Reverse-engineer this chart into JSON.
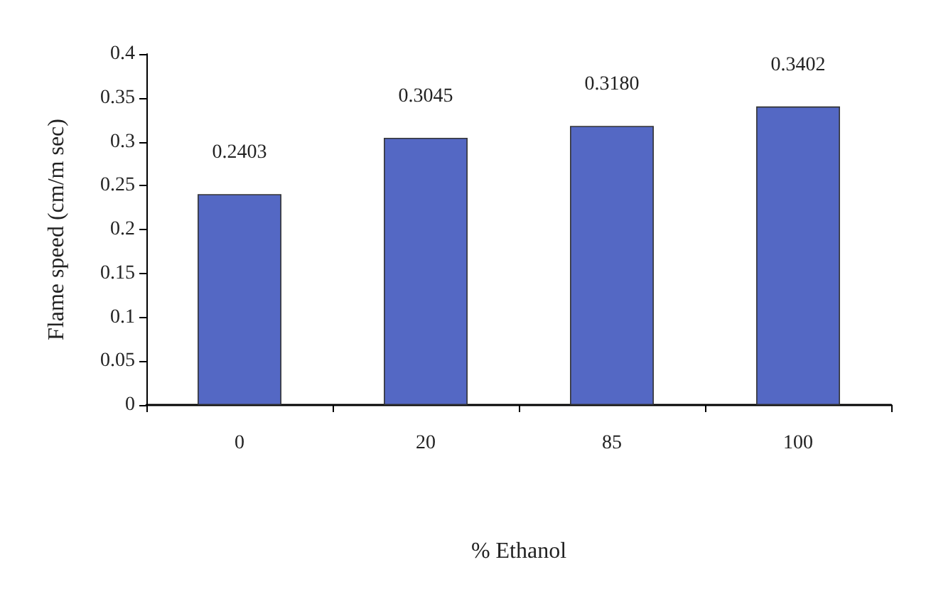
{
  "chart_data": {
    "type": "bar",
    "categories": [
      "0",
      "20",
      "85",
      "100"
    ],
    "values": [
      0.2403,
      0.3045,
      0.318,
      0.3402
    ],
    "value_labels": [
      "0.2403",
      "0.3045",
      "0.3180",
      "0.3402"
    ],
    "color": "#5468c4",
    "ylim": [
      0,
      0.4
    ],
    "yticks": [
      0,
      0.05,
      0.1,
      0.15,
      0.2,
      0.25,
      0.3,
      0.35,
      0.4
    ],
    "xlabel": "% Ethanol",
    "ylabel": "Flame speed (cm/m sec)",
    "grid": false
  }
}
